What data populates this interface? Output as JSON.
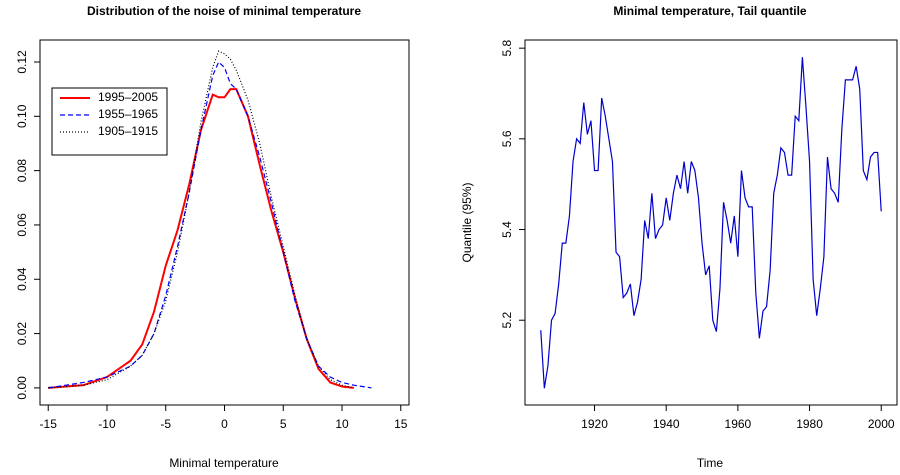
{
  "chart_data": [
    {
      "type": "line",
      "title": "Distribution of the noise of minimal temperature",
      "x_label": "Minimal temperature",
      "x": [
        -15,
        -12,
        -10,
        -8,
        -7,
        -6,
        -5,
        -4,
        -3,
        -2,
        -1,
        -0.5,
        0,
        0.5,
        1,
        2,
        3,
        4,
        5,
        6,
        7,
        8,
        9,
        10,
        11,
        12.5
      ],
      "series": [
        {
          "name": "1995–2005",
          "color": "#ff0000",
          "linestyle": "solid",
          "values": [
            0,
            0.001,
            0.004,
            0.01,
            0.016,
            0.028,
            0.045,
            0.058,
            0.075,
            0.095,
            0.108,
            0.107,
            0.107,
            0.11,
            0.11,
            0.1,
            0.082,
            0.065,
            0.05,
            0.033,
            0.018,
            0.007,
            0.002,
            0.0005,
            0,
            null
          ]
        },
        {
          "name": "1955–1965",
          "color": "#0000ff",
          "linestyle": "dashed",
          "values": [
            0,
            0.002,
            0.004,
            0.008,
            0.012,
            0.02,
            0.034,
            0.052,
            0.072,
            0.095,
            0.115,
            0.12,
            0.118,
            0.112,
            0.11,
            0.1,
            0.085,
            0.068,
            0.05,
            0.032,
            0.018,
            0.008,
            0.004,
            0.002,
            0.001,
            0
          ]
        },
        {
          "name": "1905–1915",
          "color": "#000000",
          "linestyle": "dotted",
          "values": [
            0,
            0.001,
            0.003,
            0.008,
            0.012,
            0.02,
            0.032,
            0.05,
            0.072,
            0.098,
            0.118,
            0.124,
            0.123,
            0.121,
            0.117,
            0.106,
            0.09,
            0.07,
            0.052,
            0.034,
            0.018,
            0.008,
            0.003,
            0.001,
            0,
            null
          ]
        }
      ],
      "xlim": [
        -15.7,
        15.7
      ],
      "xticks": [
        -15,
        -10,
        -5,
        0,
        5,
        10,
        15
      ],
      "ylim": [
        -0.0063,
        0.1281
      ],
      "yticks": [
        {
          "value": 0,
          "label": "0.00"
        },
        {
          "value": 0.02,
          "label": "0.02"
        },
        {
          "value": 0.04,
          "label": "0.04"
        },
        {
          "value": 0.06,
          "label": "0.06"
        },
        {
          "value": 0.08,
          "label": "0.08"
        },
        {
          "value": 0.1,
          "label": "0.10"
        },
        {
          "value": 0.12,
          "label": "0.12"
        }
      ],
      "legend": "top-left"
    },
    {
      "type": "line",
      "title": "Minimal temperature, Tail quantile",
      "x_label": "Time",
      "y_label": "Quantile (95%)",
      "x": [
        1905,
        1906,
        1907,
        1908,
        1909,
        1910,
        1911,
        1912,
        1913,
        1914,
        1915,
        1916,
        1917,
        1918,
        1919,
        1920,
        1921,
        1922,
        1923,
        1924,
        1925,
        1926,
        1927,
        1928,
        1929,
        1930,
        1931,
        1932,
        1933,
        1934,
        1935,
        1936,
        1937,
        1938,
        1939,
        1940,
        1941,
        1942,
        1943,
        1944,
        1945,
        1946,
        1947,
        1948,
        1949,
        1950,
        1951,
        1952,
        1953,
        1954,
        1955,
        1956,
        1957,
        1958,
        1959,
        1960,
        1961,
        1962,
        1963,
        1964,
        1965,
        1966,
        1967,
        1968,
        1969,
        1970,
        1971,
        1972,
        1973,
        1974,
        1975,
        1976,
        1977,
        1978,
        1979,
        1980,
        1981,
        1982,
        1983,
        1984,
        1985,
        1986,
        1987,
        1988,
        1989,
        1990,
        1991,
        1992,
        1993,
        1994,
        1995,
        1996,
        1997,
        1998,
        1999,
        2000
      ],
      "series": [
        {
          "name": "Quantile",
          "color": "#0000cd",
          "linestyle": "solid",
          "values": [
            5.178,
            5.05,
            5.1,
            5.2,
            5.215,
            5.28,
            5.37,
            5.37,
            5.43,
            5.55,
            5.6,
            5.59,
            5.68,
            5.61,
            5.64,
            5.53,
            5.53,
            5.69,
            5.65,
            5.6,
            5.55,
            5.35,
            5.34,
            5.25,
            5.26,
            5.28,
            5.21,
            5.24,
            5.29,
            5.42,
            5.38,
            5.48,
            5.38,
            5.4,
            5.41,
            5.47,
            5.42,
            5.48,
            5.52,
            5.49,
            5.55,
            5.48,
            5.55,
            5.53,
            5.47,
            5.37,
            5.3,
            5.32,
            5.2,
            5.175,
            5.27,
            5.46,
            5.42,
            5.37,
            5.43,
            5.34,
            5.53,
            5.47,
            5.45,
            5.45,
            5.26,
            5.16,
            5.22,
            5.23,
            5.31,
            5.48,
            5.52,
            5.58,
            5.57,
            5.52,
            5.52,
            5.65,
            5.64,
            5.78,
            5.67,
            5.55,
            5.29,
            5.21,
            5.27,
            5.34,
            5.56,
            5.49,
            5.48,
            5.46,
            5.62,
            5.73,
            5.73,
            5.73,
            5.76,
            5.71,
            5.53,
            5.51,
            5.56,
            5.57,
            5.57,
            5.44
          ]
        }
      ],
      "xlim": [
        1900.6,
        2004.4
      ],
      "xticks": [
        1920,
        1940,
        1960,
        1980,
        2000
      ],
      "ylim": [
        5.013,
        5.818
      ],
      "yticks": [
        5.2,
        5.4,
        5.6,
        5.8
      ]
    }
  ]
}
